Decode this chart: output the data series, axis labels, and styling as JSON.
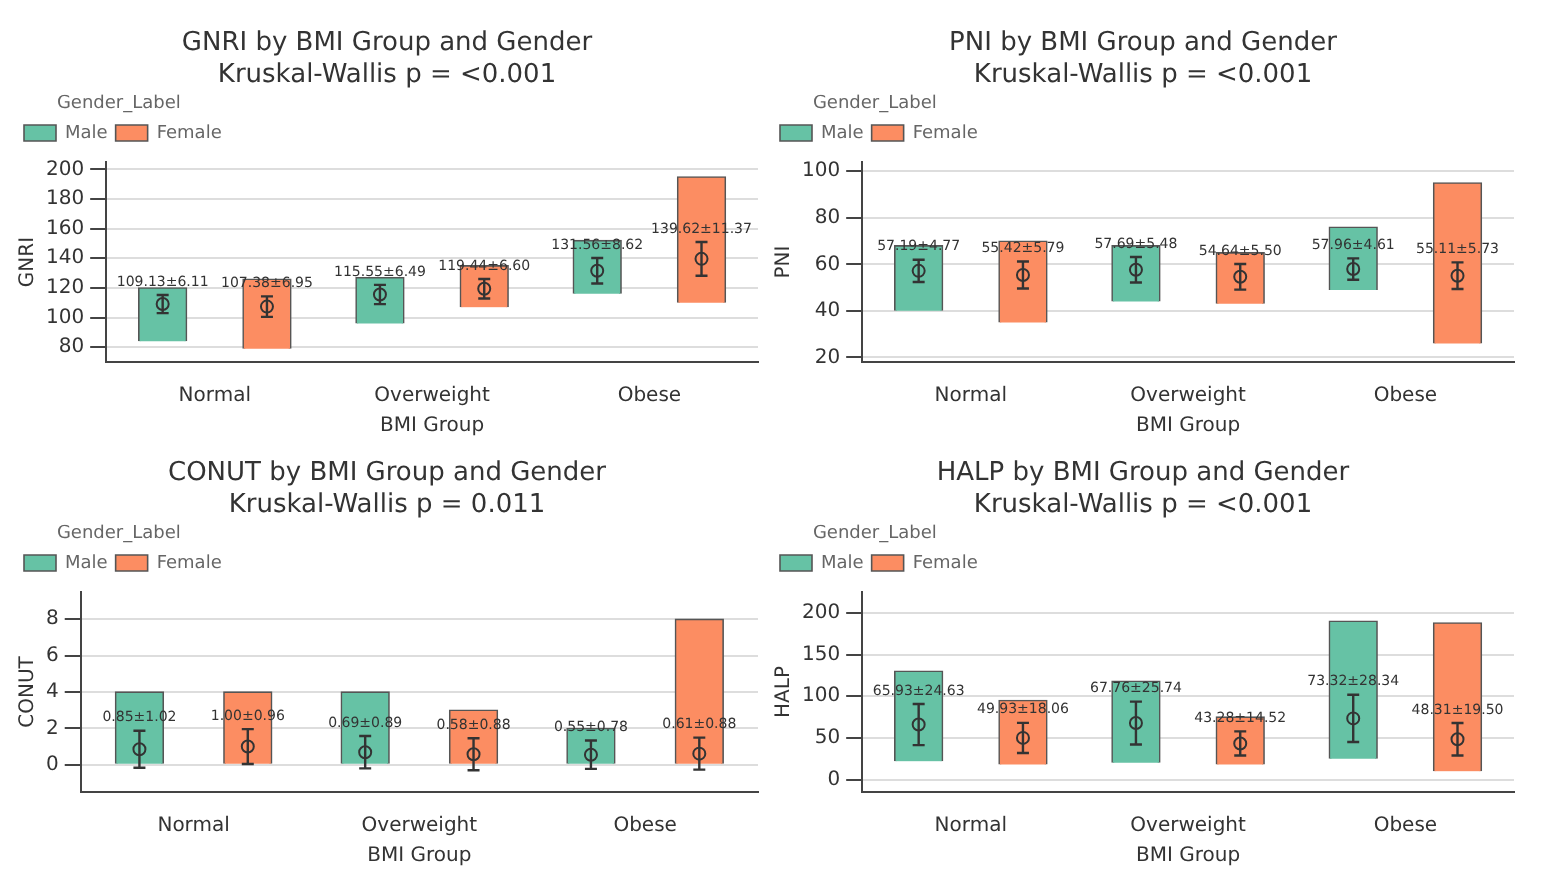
{
  "chart_data": [
    {
      "type": "bar",
      "title": "GNRI by BMI Group and Gender",
      "subtitle": "Kruskal-Wallis p = <0.001",
      "xlabel": "BMI Group",
      "ylabel": "GNRI",
      "legend_title": "Gender_Label",
      "categories": [
        "Normal",
        "Overweight",
        "Obese"
      ],
      "series": [
        {
          "name": "Male",
          "color": "#66c2a5",
          "base": [
            84,
            96,
            116
          ],
          "values": [
            36,
            31,
            36
          ]
        },
        {
          "name": "Female",
          "color": "#fc8d62",
          "base": [
            79,
            107,
            110
          ],
          "values": [
            47,
            28,
            85
          ]
        },
        {
          "type": "scatter",
          "color": "#66c2a5",
          "x": [
            "Normal",
            "Overweight",
            "Obese"
          ],
          "values": [
            109.13,
            115.55,
            131.56
          ],
          "errors": [
            6.11,
            6.49,
            8.62
          ],
          "value_labels": [
            "109.13±6.11",
            "115.55±6.49",
            "131.56±8.62"
          ]
        },
        {
          "type": "scatter",
          "color": "#fc8d62",
          "x": [
            "Normal",
            "Overweight",
            "Obese"
          ],
          "values": [
            107.38,
            119.44,
            139.62
          ],
          "errors": [
            6.95,
            6.6,
            11.37
          ],
          "value_labels": [
            "107.38±6.95",
            "119.44±6.60",
            "139.62±11.37"
          ]
        }
      ],
      "ylim": [
        70,
        205
      ],
      "yticks": [
        80,
        100,
        120,
        140,
        160,
        180,
        200
      ],
      "grid": "y",
      "legend": "top left",
      "marker": "circle"
    },
    {
      "type": "bar",
      "title": "PNI by BMI Group and Gender",
      "subtitle": "Kruskal-Wallis p = <0.001",
      "xlabel": "BMI Group",
      "ylabel": "PNI",
      "legend_title": "Gender_Label",
      "categories": [
        "Normal",
        "Overweight",
        "Obese"
      ],
      "series": [
        {
          "name": "Male",
          "color": "#66c2a5",
          "base": [
            40,
            44,
            49
          ],
          "values": [
            28,
            24,
            27
          ]
        },
        {
          "name": "Female",
          "color": "#fc8d62",
          "base": [
            35,
            43,
            26
          ],
          "values": [
            35,
            22,
            69
          ]
        },
        {
          "type": "scatter",
          "color": "#66c2a5",
          "x": [
            "Normal",
            "Overweight",
            "Obese"
          ],
          "values": [
            57.19,
            57.69,
            57.96
          ],
          "errors": [
            4.77,
            5.48,
            4.61
          ],
          "value_labels": [
            "57.19±4.77",
            "57.69±5.48",
            "57.96±4.61"
          ]
        },
        {
          "type": "scatter",
          "color": "#fc8d62",
          "x": [
            "Normal",
            "Overweight",
            "Obese"
          ],
          "values": [
            55.42,
            54.64,
            55.11
          ],
          "errors": [
            5.79,
            5.5,
            5.73
          ],
          "value_labels": [
            "55.42±5.79",
            "54.64±5.50",
            "55.11±5.73"
          ]
        }
      ],
      "ylim": [
        18,
        104
      ],
      "yticks": [
        20,
        40,
        60,
        80,
        100
      ],
      "grid": "y",
      "legend": "top left",
      "marker": "circle"
    },
    {
      "type": "bar",
      "title": "CONUT by BMI Group and Gender",
      "subtitle": "Kruskal-Wallis p = 0.011",
      "xlabel": "BMI Group",
      "ylabel": "CONUT",
      "legend_title": "Gender_Label",
      "categories": [
        "Normal",
        "Overweight",
        "Obese"
      ],
      "series": [
        {
          "name": "Male",
          "color": "#66c2a5",
          "base": [
            0,
            0,
            0
          ],
          "values": [
            4,
            4,
            2
          ]
        },
        {
          "name": "Female",
          "color": "#fc8d62",
          "base": [
            0,
            0,
            0
          ],
          "values": [
            4,
            3,
            8
          ]
        },
        {
          "type": "scatter",
          "color": "#66c2a5",
          "x": [
            "Normal",
            "Overweight",
            "Obese"
          ],
          "values": [
            0.85,
            0.69,
            0.55
          ],
          "errors": [
            1.02,
            0.89,
            0.78
          ],
          "value_labels": [
            "0.85±1.02",
            "0.69±0.89",
            "0.55±0.78"
          ]
        },
        {
          "type": "scatter",
          "color": "#fc8d62",
          "x": [
            "Normal",
            "Overweight",
            "Obese"
          ],
          "values": [
            1.0,
            0.58,
            0.61
          ],
          "errors": [
            0.96,
            0.88,
            0.88
          ],
          "value_labels": [
            "1.00±0.96",
            "0.58±0.88",
            "0.61±0.88"
          ]
        }
      ],
      "ylim": [
        -1.5,
        9.5
      ],
      "yticks": [
        0,
        2,
        4,
        6,
        8
      ],
      "grid": "y",
      "legend": "top left",
      "marker": "circle"
    },
    {
      "type": "bar",
      "title": "HALP by BMI Group and Gender",
      "subtitle": "Kruskal-Wallis p = <0.001",
      "xlabel": "BMI Group",
      "ylabel": "HALP",
      "legend_title": "Gender_Label",
      "categories": [
        "Normal",
        "Overweight",
        "Obese"
      ],
      "series": [
        {
          "name": "Male",
          "color": "#66c2a5",
          "base": [
            22,
            20,
            25
          ],
          "values": [
            108,
            98,
            165
          ]
        },
        {
          "name": "Female",
          "color": "#fc8d62",
          "base": [
            18,
            18,
            10
          ],
          "values": [
            77,
            57,
            178
          ]
        },
        {
          "type": "scatter",
          "color": "#66c2a5",
          "x": [
            "Normal",
            "Overweight",
            "Obese"
          ],
          "values": [
            65.93,
            67.76,
            73.32
          ],
          "errors": [
            24.63,
            25.74,
            28.34
          ],
          "value_labels": [
            "65.93±24.63",
            "67.76±25.74",
            "73.32±28.34"
          ]
        },
        {
          "type": "scatter",
          "color": "#fc8d62",
          "x": [
            "Normal",
            "Overweight",
            "Obese"
          ],
          "values": [
            49.93,
            43.28,
            48.31
          ],
          "errors": [
            18.06,
            14.52,
            19.5
          ],
          "value_labels": [
            "49.93±18.06",
            "43.28±14.52",
            "48.31±19.50"
          ]
        }
      ],
      "ylim": [
        -15,
        225
      ],
      "yticks": [
        0,
        50,
        100,
        150,
        200
      ],
      "grid": "y",
      "legend": "top left",
      "marker": "circle"
    }
  ]
}
